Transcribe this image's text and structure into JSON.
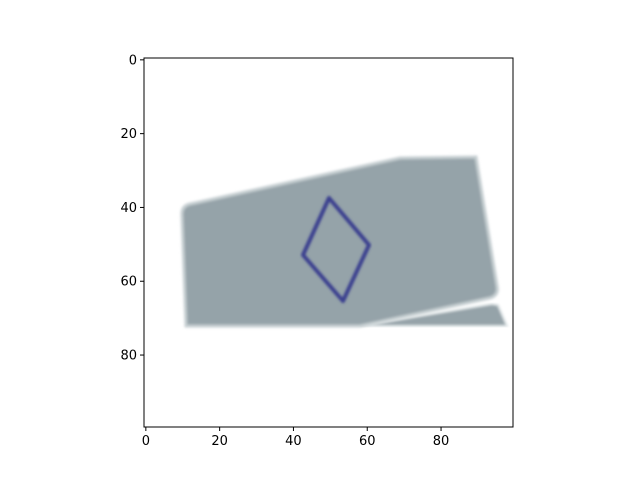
{
  "figure": {
    "xticks": [
      0,
      20,
      40,
      60,
      80
    ],
    "yticks": [
      0,
      20,
      40,
      60,
      80
    ],
    "xlim": [
      -0.5,
      99.5
    ],
    "ylim": [
      99.5,
      -0.5
    ],
    "image": {
      "shape": "card",
      "symbol": "diamond-outline",
      "card_color": "#95a3a9",
      "card_edge_color": "#c6cfd2",
      "symbol_color": "#3a3f8f",
      "background_color": "#ffffff"
    }
  }
}
